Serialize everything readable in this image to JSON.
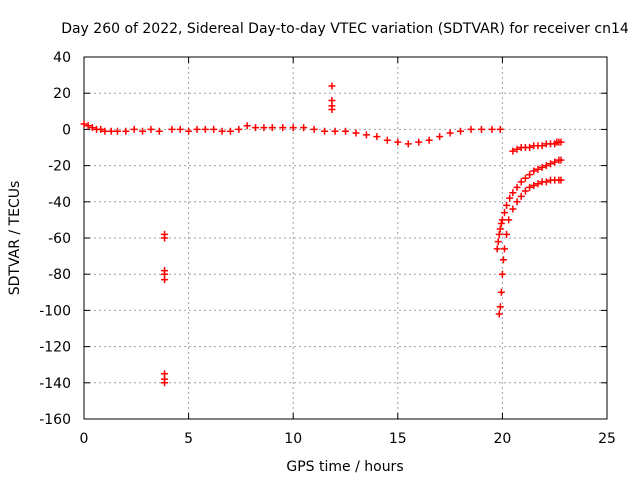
{
  "chart_data": {
    "type": "scatter",
    "title": "Day 260 of 2022, Sidereal Day-to-day VTEC variation (SDTVAR) for receiver cn14",
    "xlabel": "GPS time / hours",
    "ylabel": "SDTVAR / TECUs",
    "xlim": [
      0,
      25
    ],
    "ylim": [
      -160,
      40
    ],
    "xticks": [
      0,
      5,
      10,
      15,
      20,
      25
    ],
    "yticks": [
      -160,
      -140,
      -120,
      -100,
      -80,
      -60,
      -40,
      -20,
      0,
      20,
      40
    ],
    "xtick_labels": [
      "0",
      "5",
      "10",
      "15",
      "20",
      "25"
    ],
    "ytick_labels": [
      "-160",
      "-140",
      "-120",
      "-100",
      "-80",
      "-60",
      "-40",
      "-20",
      "0",
      "20",
      "40"
    ],
    "grid": true,
    "marker": "+",
    "color": "#ff0000",
    "series": [
      {
        "name": "SDTVAR",
        "x": [
          0.0,
          0.2,
          0.4,
          0.6,
          0.8,
          1.0,
          1.3,
          1.6,
          2.0,
          2.4,
          2.8,
          3.2,
          3.6,
          4.2,
          4.6,
          5.0,
          5.4,
          5.8,
          6.2,
          6.6,
          7.0,
          7.4,
          7.8,
          8.2,
          8.6,
          9.0,
          9.5,
          10.0,
          10.5,
          11.0,
          11.5,
          12.0,
          12.5,
          13.0,
          13.5,
          14.0,
          14.5,
          15.0,
          15.5,
          16.0,
          16.5,
          17.0,
          17.5,
          18.0,
          18.5,
          19.0,
          19.5,
          19.9,
          3.85,
          3.85,
          3.85,
          3.85,
          3.85,
          3.85,
          3.85,
          3.85,
          11.85,
          11.85,
          11.85,
          11.85,
          19.85,
          19.9,
          19.95,
          20.0,
          20.05,
          20.1,
          20.2,
          20.3,
          20.5,
          20.7,
          20.9,
          21.1,
          21.3,
          21.5,
          21.7,
          21.9,
          22.1,
          22.3,
          22.5,
          22.7,
          22.8,
          19.75,
          19.8,
          19.85,
          19.9,
          19.95,
          20.0,
          20.1,
          20.2,
          20.35,
          20.5,
          20.7,
          20.9,
          21.1,
          21.3,
          21.5,
          21.7,
          21.9,
          22.1,
          22.3,
          22.5,
          22.7,
          22.8,
          20.5,
          20.7,
          20.9,
          21.1,
          21.3,
          21.5,
          21.7,
          21.9,
          22.1,
          22.3,
          22.5,
          22.6,
          22.7,
          22.8
        ],
        "y": [
          3,
          2,
          1,
          0,
          0,
          -1,
          -1,
          -1,
          -1,
          0,
          -1,
          0,
          -1,
          0,
          0,
          -1,
          0,
          0,
          0,
          -1,
          -1,
          0,
          2,
          1,
          1,
          1,
          1,
          1,
          1,
          0,
          -1,
          -1,
          -1,
          -2,
          -3,
          -4,
          -6,
          -7,
          -8,
          -7,
          -6,
          -4,
          -2,
          -1,
          0,
          0,
          0,
          0,
          -58,
          -60,
          -78,
          -80,
          -83,
          -135,
          -138,
          -140,
          24,
          16,
          13,
          11,
          -102,
          -98,
          -90,
          -80,
          -72,
          -66,
          -58,
          -50,
          -44,
          -40,
          -37,
          -34,
          -32,
          -31,
          -30,
          -29,
          -29,
          -28,
          -28,
          -28,
          -28,
          -66,
          -62,
          -58,
          -55,
          -52,
          -50,
          -46,
          -42,
          -38,
          -35,
          -32,
          -29,
          -27,
          -25,
          -23,
          -22,
          -21,
          -20,
          -19,
          -18,
          -17,
          -17,
          -12,
          -11,
          -10,
          -10,
          -10,
          -9,
          -9,
          -9,
          -8,
          -8,
          -8,
          -7,
          -7,
          -7
        ]
      }
    ]
  }
}
